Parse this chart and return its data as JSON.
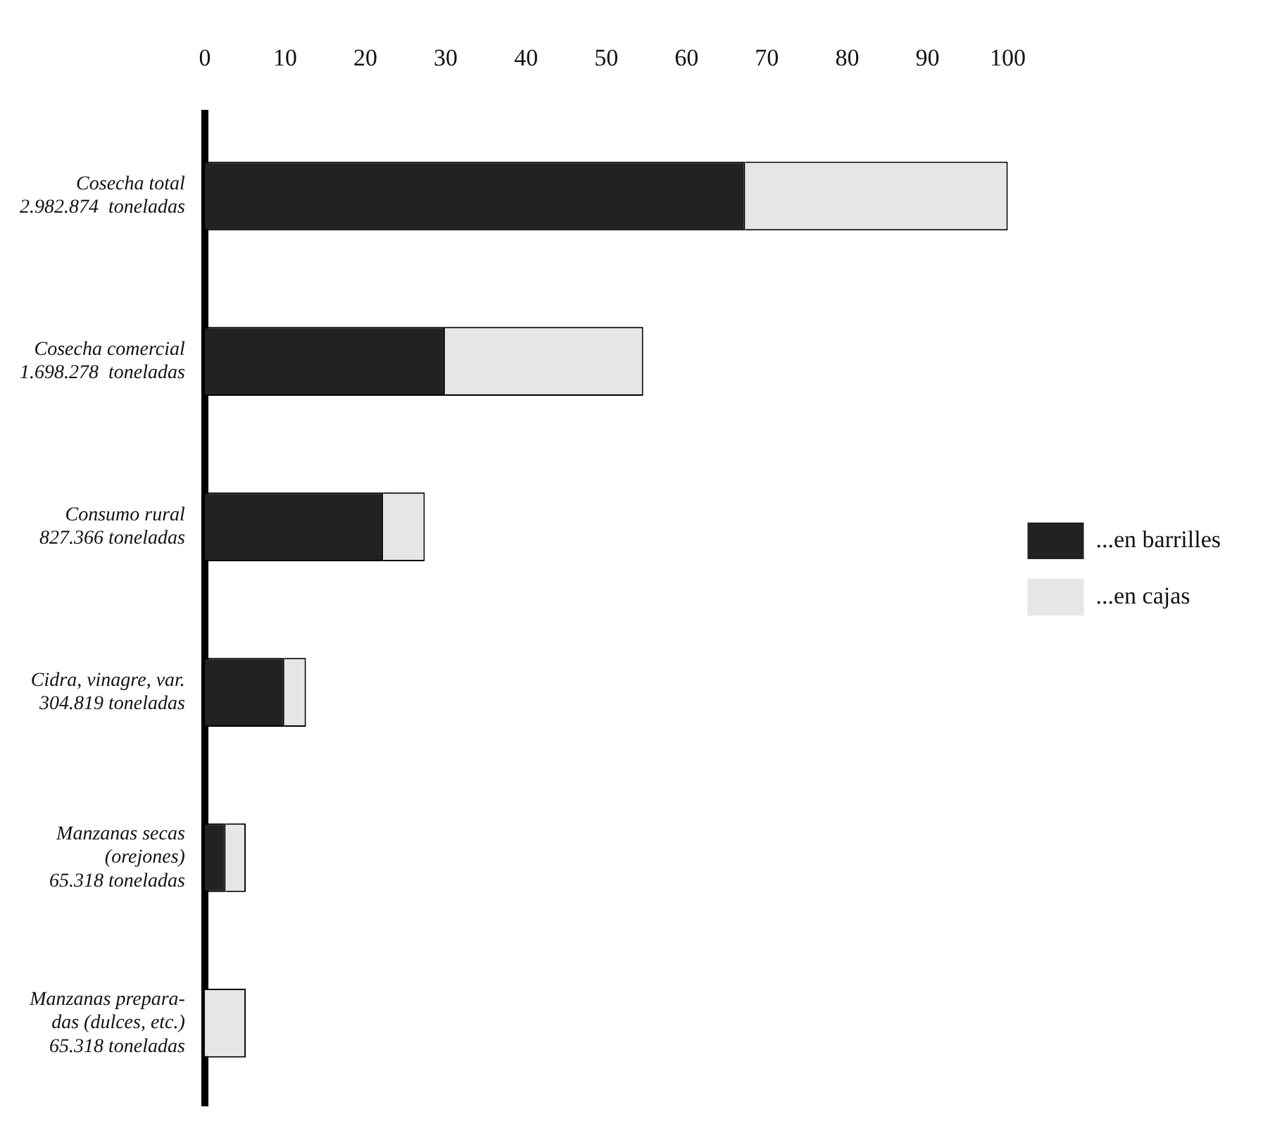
{
  "chart_data": {
    "type": "bar",
    "orientation": "horizontal",
    "stacked": true,
    "categories": [
      "Cosecha total\n2.982.874  toneladas",
      "Cosecha comercial\n1.698.278  toneladas",
      "Consumo rural\n827.366 toneladas",
      "Cidra, vinagre, var.\n304.819 toneladas",
      "Manzanas secas\n(orejones)\n65.318 toneladas",
      "Manzanas prepara-\ndas (dulces, etc.)\n65.318 toneladas"
    ],
    "series": [
      {
        "name": "...en barrilles",
        "color": "#222222",
        "values": [
          67.3,
          29.9,
          22.2,
          9.9,
          2.6,
          0
        ]
      },
      {
        "name": "...en cajas",
        "color": "#e6e6e6",
        "values": [
          32.7,
          24.7,
          5.2,
          2.7,
          2.5,
          5.1
        ]
      }
    ],
    "xlim": [
      0,
      100
    ],
    "xticks": [
      0,
      10,
      20,
      30,
      40,
      50,
      60,
      70,
      80,
      90,
      100
    ],
    "grid": false,
    "legend": "right"
  }
}
